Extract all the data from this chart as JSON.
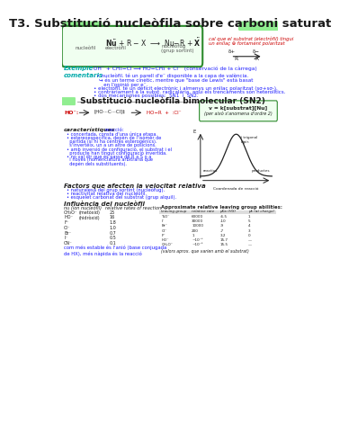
{
  "title": "T3. Substitució nucleòfila sobre carboni saturat",
  "bg_color": "#ffffff",
  "title_color": "#1a1a1a",
  "header_bar_color": "#90EE90",
  "box_border_color": "#2d8a2d",
  "red_color": "#cc0000",
  "blue_color": "#1a1aff",
  "green_text": "#2d8a2d",
  "dark_color": "#222222",
  "cyan_color": "#00aaaa",
  "body_text_color": "#333333"
}
